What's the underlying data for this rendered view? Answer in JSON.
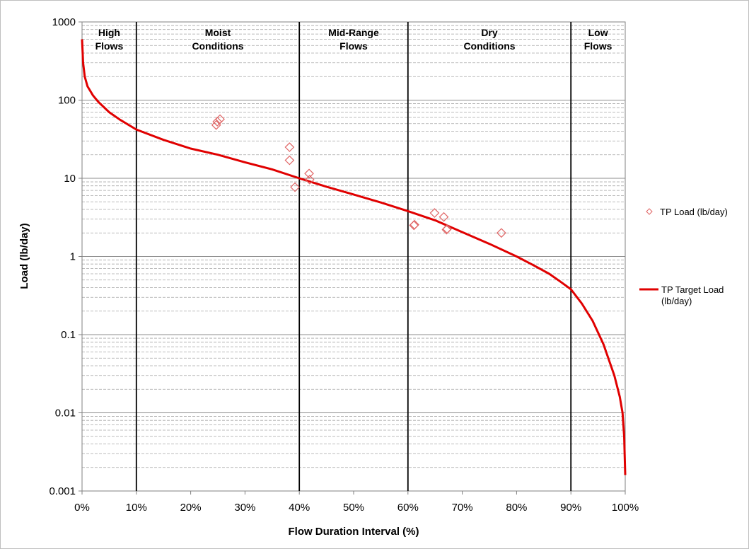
{
  "chart_data": {
    "type": "scatter",
    "title": "",
    "xlabel": "Flow Duration Interval (%)",
    "ylabel": "Load (lb/day)",
    "xlim": [
      0,
      100
    ],
    "ylim": [
      0.001,
      1000
    ],
    "yscale": "log",
    "grid": {
      "major_y": true,
      "minor_y": true,
      "major_x": false
    },
    "x_ticks": [
      "0%",
      "10%",
      "20%",
      "30%",
      "40%",
      "50%",
      "60%",
      "70%",
      "80%",
      "90%",
      "100%"
    ],
    "y_ticks": [
      "0.001",
      "0.01",
      "0.1",
      "1",
      "10",
      "100",
      "1000"
    ],
    "zone_boundaries": [
      10,
      40,
      60,
      90
    ],
    "zones": [
      {
        "line1": "High",
        "line2": "Flows",
        "x_center": 5
      },
      {
        "line1": "Moist",
        "line2": "Conditions",
        "x_center": 25
      },
      {
        "line1": "Mid-Range",
        "line2": "Flows",
        "x_center": 50
      },
      {
        "line1": "Dry",
        "line2": "Conditions",
        "x_center": 75
      },
      {
        "line1": "Low",
        "line2": "Flows",
        "x_center": 95
      }
    ],
    "legend_position": "right",
    "series": [
      {
        "name": "TP Load (lb/day)",
        "kind": "scatter",
        "marker": "diamond",
        "color": "#e06666",
        "points": [
          {
            "x": 24.7,
            "y": 48
          },
          {
            "x": 24.9,
            "y": 53
          },
          {
            "x": 25.4,
            "y": 57
          },
          {
            "x": 38.2,
            "y": 25
          },
          {
            "x": 38.2,
            "y": 17
          },
          {
            "x": 39.2,
            "y": 7.7
          },
          {
            "x": 41.8,
            "y": 11.5
          },
          {
            "x": 41.9,
            "y": 9.6
          },
          {
            "x": 61.1,
            "y": 2.5
          },
          {
            "x": 61.2,
            "y": 2.55
          },
          {
            "x": 64.9,
            "y": 3.6
          },
          {
            "x": 66.6,
            "y": 3.2
          },
          {
            "x": 67.1,
            "y": 2.2
          },
          {
            "x": 67.2,
            "y": 2.25
          },
          {
            "x": 77.2,
            "y": 2.0
          }
        ]
      },
      {
        "name_line1": "TP Target Load",
        "name_line2": "(lb/day)",
        "kind": "line",
        "color": "#e00000",
        "points": [
          {
            "x": 0.0,
            "y": 600
          },
          {
            "x": 0.2,
            "y": 300
          },
          {
            "x": 0.5,
            "y": 200
          },
          {
            "x": 1.0,
            "y": 150
          },
          {
            "x": 2.0,
            "y": 115
          },
          {
            "x": 3.0,
            "y": 95
          },
          {
            "x": 5.0,
            "y": 70
          },
          {
            "x": 7.0,
            "y": 56
          },
          {
            "x": 10.0,
            "y": 42
          },
          {
            "x": 15.0,
            "y": 31
          },
          {
            "x": 20.0,
            "y": 24
          },
          {
            "x": 25.0,
            "y": 20
          },
          {
            "x": 30.0,
            "y": 16
          },
          {
            "x": 35.0,
            "y": 13
          },
          {
            "x": 40.0,
            "y": 10
          },
          {
            "x": 45.0,
            "y": 7.8
          },
          {
            "x": 50.0,
            "y": 6.2
          },
          {
            "x": 55.0,
            "y": 4.9
          },
          {
            "x": 60.0,
            "y": 3.8
          },
          {
            "x": 65.0,
            "y": 2.9
          },
          {
            "x": 70.0,
            "y": 2.05
          },
          {
            "x": 75.0,
            "y": 1.45
          },
          {
            "x": 80.0,
            "y": 1.0
          },
          {
            "x": 83.0,
            "y": 0.78
          },
          {
            "x": 86.0,
            "y": 0.6
          },
          {
            "x": 88.0,
            "y": 0.48
          },
          {
            "x": 90.0,
            "y": 0.38
          },
          {
            "x": 92.0,
            "y": 0.25
          },
          {
            "x": 94.0,
            "y": 0.15
          },
          {
            "x": 96.0,
            "y": 0.075
          },
          {
            "x": 98.0,
            "y": 0.03
          },
          {
            "x": 99.0,
            "y": 0.016
          },
          {
            "x": 99.5,
            "y": 0.01
          },
          {
            "x": 99.8,
            "y": 0.005
          },
          {
            "x": 100.0,
            "y": 0.0016
          }
        ]
      }
    ]
  }
}
